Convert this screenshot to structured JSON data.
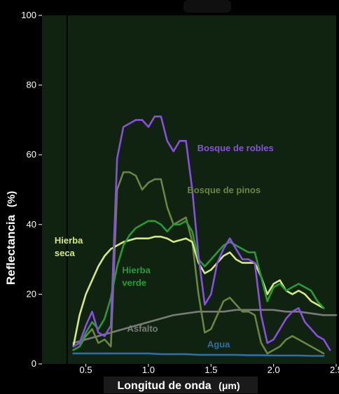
{
  "chart_data": {
    "type": "line",
    "xlabel": "Longitud de onda",
    "xlabel_unit": "(μm)",
    "ylabel": "Reflectancia",
    "ylabel_unit": "(%)",
    "xlim": [
      0.15,
      2.5
    ],
    "ylim": [
      0,
      100
    ],
    "xticks": [
      0.5,
      1.0,
      1.5,
      2.0,
      2.5
    ],
    "xtick_labels": [
      "0.5",
      "1.0",
      "1.5",
      "2.0",
      "2.5"
    ],
    "yticks": [
      0,
      20,
      40,
      60,
      80,
      100
    ],
    "ytick_labels": [
      "0",
      "20",
      "40",
      "60",
      "80",
      "100"
    ],
    "grid": false,
    "reference_line_x": 0.35,
    "series": [
      {
        "name": "Bosque de robles",
        "color": "#8a4fe0",
        "label_pos": [
          1.39,
          61
        ],
        "points": [
          [
            0.4,
            5
          ],
          [
            0.45,
            6
          ],
          [
            0.5,
            11
          ],
          [
            0.55,
            15
          ],
          [
            0.6,
            9
          ],
          [
            0.65,
            8
          ],
          [
            0.7,
            11
          ],
          [
            0.75,
            59
          ],
          [
            0.8,
            68
          ],
          [
            0.85,
            69
          ],
          [
            0.9,
            70
          ],
          [
            0.95,
            70
          ],
          [
            1.0,
            68
          ],
          [
            1.05,
            71
          ],
          [
            1.1,
            71
          ],
          [
            1.15,
            64
          ],
          [
            1.2,
            61
          ],
          [
            1.25,
            64
          ],
          [
            1.3,
            64
          ],
          [
            1.35,
            50
          ],
          [
            1.4,
            31
          ],
          [
            1.45,
            17
          ],
          [
            1.5,
            20
          ],
          [
            1.55,
            29
          ],
          [
            1.6,
            33
          ],
          [
            1.65,
            36
          ],
          [
            1.7,
            33
          ],
          [
            1.75,
            30
          ],
          [
            1.8,
            30
          ],
          [
            1.85,
            29
          ],
          [
            1.9,
            14
          ],
          [
            1.95,
            6
          ],
          [
            2.0,
            7
          ],
          [
            2.05,
            10
          ],
          [
            2.1,
            13
          ],
          [
            2.15,
            15
          ],
          [
            2.2,
            16
          ],
          [
            2.25,
            12
          ],
          [
            2.3,
            10
          ],
          [
            2.35,
            8
          ],
          [
            2.4,
            7
          ],
          [
            2.45,
            4
          ]
        ]
      },
      {
        "name": "Bosque de pinos",
        "color": "#6b8440",
        "label_pos": [
          1.31,
          49
        ],
        "points": [
          [
            0.4,
            4
          ],
          [
            0.45,
            5
          ],
          [
            0.5,
            8
          ],
          [
            0.55,
            10
          ],
          [
            0.6,
            6
          ],
          [
            0.65,
            7
          ],
          [
            0.7,
            5
          ],
          [
            0.75,
            50
          ],
          [
            0.8,
            55
          ],
          [
            0.85,
            55
          ],
          [
            0.9,
            54
          ],
          [
            0.95,
            50
          ],
          [
            1.0,
            52
          ],
          [
            1.05,
            53
          ],
          [
            1.1,
            53
          ],
          [
            1.15,
            45
          ],
          [
            1.2,
            40
          ],
          [
            1.25,
            41
          ],
          [
            1.3,
            42
          ],
          [
            1.35,
            35
          ],
          [
            1.4,
            20
          ],
          [
            1.45,
            9
          ],
          [
            1.5,
            10
          ],
          [
            1.55,
            14
          ],
          [
            1.6,
            18
          ],
          [
            1.65,
            19
          ],
          [
            1.7,
            17
          ],
          [
            1.75,
            15
          ],
          [
            1.8,
            15
          ],
          [
            1.85,
            14
          ],
          [
            1.9,
            6
          ],
          [
            1.95,
            3
          ],
          [
            2.0,
            4
          ],
          [
            2.05,
            5
          ],
          [
            2.1,
            7
          ],
          [
            2.15,
            8
          ],
          [
            2.2,
            7
          ],
          [
            2.25,
            6
          ],
          [
            2.3,
            5
          ],
          [
            2.35,
            4
          ],
          [
            2.4,
            3
          ]
        ]
      },
      {
        "name": "Hierba verde",
        "color": "#2a9a38",
        "label_pos": [
          0.79,
          26
        ],
        "points": [
          [
            0.4,
            4
          ],
          [
            0.45,
            5
          ],
          [
            0.5,
            9
          ],
          [
            0.55,
            12
          ],
          [
            0.6,
            10
          ],
          [
            0.65,
            13
          ],
          [
            0.7,
            19
          ],
          [
            0.75,
            28
          ],
          [
            0.8,
            34
          ],
          [
            0.85,
            37
          ],
          [
            0.9,
            39
          ],
          [
            0.95,
            40
          ],
          [
            1.0,
            41
          ],
          [
            1.05,
            41
          ],
          [
            1.1,
            40
          ],
          [
            1.15,
            38
          ],
          [
            1.2,
            40
          ],
          [
            1.25,
            40
          ],
          [
            1.3,
            41
          ],
          [
            1.35,
            38
          ],
          [
            1.4,
            30
          ],
          [
            1.45,
            28
          ],
          [
            1.5,
            30
          ],
          [
            1.55,
            32
          ],
          [
            1.6,
            34
          ],
          [
            1.65,
            35
          ],
          [
            1.7,
            34
          ],
          [
            1.75,
            33
          ],
          [
            1.8,
            32
          ],
          [
            1.85,
            32
          ],
          [
            1.9,
            25
          ],
          [
            1.95,
            18
          ],
          [
            2.0,
            22
          ],
          [
            2.05,
            23
          ],
          [
            2.1,
            21
          ],
          [
            2.15,
            22
          ],
          [
            2.2,
            23
          ],
          [
            2.25,
            22
          ],
          [
            2.3,
            21
          ],
          [
            2.35,
            18
          ],
          [
            2.4,
            16
          ]
        ]
      },
      {
        "name": "Hierba seca",
        "color": "#d6e884",
        "label_pos": [
          0.25,
          34.5
        ],
        "points": [
          [
            0.4,
            5
          ],
          [
            0.45,
            14
          ],
          [
            0.5,
            20
          ],
          [
            0.55,
            24
          ],
          [
            0.6,
            28
          ],
          [
            0.65,
            31
          ],
          [
            0.7,
            33
          ],
          [
            0.75,
            34
          ],
          [
            0.8,
            35
          ],
          [
            0.85,
            35.5
          ],
          [
            0.9,
            36
          ],
          [
            0.95,
            36
          ],
          [
            1.0,
            36
          ],
          [
            1.05,
            36.5
          ],
          [
            1.1,
            36.5
          ],
          [
            1.15,
            36
          ],
          [
            1.2,
            35
          ],
          [
            1.25,
            35.5
          ],
          [
            1.3,
            36
          ],
          [
            1.35,
            35
          ],
          [
            1.4,
            29
          ],
          [
            1.45,
            26
          ],
          [
            1.5,
            27
          ],
          [
            1.55,
            29
          ],
          [
            1.6,
            31
          ],
          [
            1.65,
            32
          ],
          [
            1.7,
            30
          ],
          [
            1.75,
            29
          ],
          [
            1.8,
            29
          ],
          [
            1.85,
            29
          ],
          [
            1.9,
            25
          ],
          [
            1.95,
            20
          ],
          [
            2.0,
            23
          ],
          [
            2.05,
            24
          ],
          [
            2.1,
            21
          ],
          [
            2.15,
            20
          ],
          [
            2.2,
            21
          ],
          [
            2.25,
            20
          ],
          [
            2.3,
            18
          ],
          [
            2.35,
            17
          ],
          [
            2.4,
            16
          ]
        ]
      },
      {
        "name": "Asfalto",
        "color": "#7a7a7a",
        "label_pos": [
          0.83,
          9.2
        ],
        "points": [
          [
            0.4,
            6
          ],
          [
            0.5,
            7
          ],
          [
            0.6,
            8
          ],
          [
            0.7,
            9
          ],
          [
            0.8,
            10
          ],
          [
            0.9,
            11
          ],
          [
            1.0,
            12
          ],
          [
            1.1,
            13
          ],
          [
            1.2,
            14
          ],
          [
            1.3,
            14.5
          ],
          [
            1.4,
            15
          ],
          [
            1.5,
            15
          ],
          [
            1.6,
            15
          ],
          [
            1.7,
            15.5
          ],
          [
            1.8,
            15.5
          ],
          [
            1.9,
            15.5
          ],
          [
            2.0,
            15.5
          ],
          [
            2.1,
            15
          ],
          [
            2.2,
            15
          ],
          [
            2.3,
            14.5
          ],
          [
            2.4,
            14
          ],
          [
            2.5,
            14
          ]
        ]
      },
      {
        "name": "Agua",
        "color": "#2f6ea8",
        "label_pos": [
          1.47,
          4.7
        ],
        "points": [
          [
            0.4,
            3
          ],
          [
            0.5,
            3
          ],
          [
            0.6,
            3
          ],
          [
            0.7,
            3
          ],
          [
            0.8,
            3
          ],
          [
            0.9,
            3
          ],
          [
            1.0,
            3
          ],
          [
            1.1,
            2.8
          ],
          [
            1.2,
            2.8
          ],
          [
            1.3,
            2.8
          ],
          [
            1.4,
            2.6
          ],
          [
            1.5,
            2.6
          ],
          [
            1.6,
            2.6
          ],
          [
            1.7,
            2.6
          ],
          [
            1.8,
            2.5
          ],
          [
            1.9,
            2.5
          ],
          [
            2.0,
            2.4
          ],
          [
            2.1,
            2.4
          ],
          [
            2.2,
            2.4
          ],
          [
            2.3,
            2.3
          ],
          [
            2.4,
            2.3
          ]
        ]
      }
    ]
  }
}
